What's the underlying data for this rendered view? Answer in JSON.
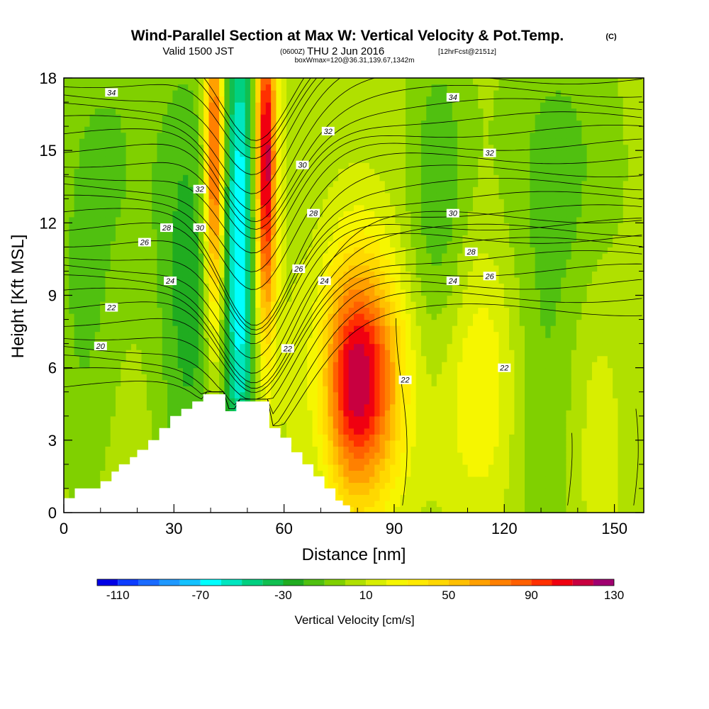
{
  "header": {
    "title": "Wind-Parallel Section at Max W: Vertical Velocity & Pot.Temp.",
    "title_mark": "(C)",
    "valid_prefix": "Valid 1500 JST",
    "valid_utc": "(0600Z)",
    "valid_date": "THU 2 Jun 2016",
    "forecast_info": "[12hrFcst@2151z]",
    "box_info": "boxWmax=120@36.31,139.67,1342m"
  },
  "chart_data": {
    "type": "heatmap",
    "title": "Wind-Parallel Section at Max W: Vertical Velocity & Pot.Temp.",
    "xlabel": "Distance [nm]",
    "ylabel": "Height [Kft MSL]",
    "xlim": [
      0,
      158
    ],
    "ylim": [
      0,
      18
    ],
    "x_ticks": [
      0,
      30,
      60,
      90,
      120,
      150
    ],
    "x_minor_step": 10,
    "y_ticks": [
      0,
      3,
      6,
      9,
      12,
      15,
      18
    ],
    "y_minor_step": 1,
    "colorbar": {
      "label": "Vertical Velocity [cm/s]",
      "min": -120,
      "max": 130,
      "step": 10,
      "tick_values": [
        -110,
        -70,
        -30,
        10,
        50,
        90,
        130
      ],
      "colors": [
        "#0000e6",
        "#0d3dff",
        "#1a6bff",
        "#1f99ff",
        "#14c2ff",
        "#00ffff",
        "#00e6c0",
        "#00d080",
        "#10bf50",
        "#20ac20",
        "#50c010",
        "#80d000",
        "#b0e000",
        "#d8ee00",
        "#f6f600",
        "#ffea00",
        "#ffd800",
        "#ffc000",
        "#ffa000",
        "#ff8000",
        "#ff6000",
        "#ff3000",
        "#f00010",
        "#c80040",
        "#a00070",
        "#600090"
      ],
      "placement": "bottom"
    },
    "velocity_features": [
      {
        "x": 41,
        "y": 14.5,
        "sx": 1.8,
        "sy": 5,
        "value": 95
      },
      {
        "x": 55,
        "y": 14.5,
        "sx": 2,
        "sy": 5,
        "value": 115
      },
      {
        "x": 48,
        "y": 11,
        "sx": 3,
        "sy": 8,
        "value": -75
      },
      {
        "x": 34,
        "y": 9,
        "sx": 6,
        "sy": 7,
        "value": -30
      },
      {
        "x": 80,
        "y": 5.5,
        "sx": 8,
        "sy": 3.5,
        "value": 115
      },
      {
        "x": 113,
        "y": 5.5,
        "sx": 8,
        "sy": 4,
        "value": 25
      },
      {
        "x": 130,
        "y": 3,
        "sx": 6,
        "sy": 5,
        "value": -15
      },
      {
        "x": 135,
        "y": 14,
        "sx": 12,
        "sy": 5,
        "value": -20
      },
      {
        "x": 102,
        "y": 13,
        "sx": 6,
        "sy": 5,
        "value": -25
      },
      {
        "x": 15,
        "y": 15,
        "sx": 10,
        "sy": 5,
        "value": -15
      },
      {
        "x": 5,
        "y": 8,
        "sx": 6,
        "sy": 6,
        "value": -15
      },
      {
        "x": 70,
        "y": 5,
        "sx": 4,
        "sy": 4,
        "value": -20
      },
      {
        "x": 145,
        "y": 4,
        "sx": 5,
        "sy": 5,
        "value": 10
      }
    ],
    "terrain": {
      "x": [
        0,
        3,
        7,
        10,
        13,
        15,
        18,
        20,
        23,
        26,
        29,
        32,
        35,
        38,
        41,
        44,
        47,
        50,
        53,
        56,
        59,
        62,
        65,
        68,
        71,
        74,
        76
      ],
      "height": [
        0.6,
        1.0,
        1.0,
        1.3,
        1.7,
        2.0,
        2.3,
        2.6,
        3.0,
        3.5,
        4.0,
        4.3,
        4.6,
        4.9,
        4.9,
        4.2,
        4.6,
        4.6,
        4.6,
        3.5,
        3.1,
        2.5,
        2.0,
        1.5,
        1.0,
        0.5,
        0.3
      ]
    },
    "theta_contours": {
      "label_values": [
        "20",
        "22",
        "22",
        "22",
        "22",
        "24",
        "24",
        "24",
        "26",
        "26",
        "26",
        "28",
        "28",
        "28",
        "30",
        "30",
        "30",
        "32",
        "32",
        "32",
        "34",
        "34"
      ],
      "labels": [
        {
          "text": "34",
          "x": 13,
          "y": 17.4
        },
        {
          "text": "34",
          "x": 106,
          "y": 17.2
        },
        {
          "text": "32",
          "x": 72,
          "y": 15.8
        },
        {
          "text": "32",
          "x": 116,
          "y": 14.9
        },
        {
          "text": "32",
          "x": 37,
          "y": 13.4
        },
        {
          "text": "30",
          "x": 65,
          "y": 14.4
        },
        {
          "text": "30",
          "x": 37,
          "y": 11.8
        },
        {
          "text": "30",
          "x": 106,
          "y": 12.4
        },
        {
          "text": "28",
          "x": 28,
          "y": 11.8
        },
        {
          "text": "28",
          "x": 68,
          "y": 12.4
        },
        {
          "text": "28",
          "x": 111,
          "y": 10.8
        },
        {
          "text": "26",
          "x": 22,
          "y": 11.2
        },
        {
          "text": "26",
          "x": 64,
          "y": 10.1
        },
        {
          "text": "26",
          "x": 116,
          "y": 9.8
        },
        {
          "text": "24",
          "x": 29,
          "y": 9.6
        },
        {
          "text": "24",
          "x": 71,
          "y": 9.6
        },
        {
          "text": "24",
          "x": 106,
          "y": 9.6
        },
        {
          "text": "22",
          "x": 13,
          "y": 8.5
        },
        {
          "text": "22",
          "x": 61,
          "y": 6.8
        },
        {
          "text": "22",
          "x": 93,
          "y": 5.5
        },
        {
          "text": "22",
          "x": 120,
          "y": 6.0
        },
        {
          "text": "20",
          "x": 10,
          "y": 6.9
        }
      ]
    }
  }
}
